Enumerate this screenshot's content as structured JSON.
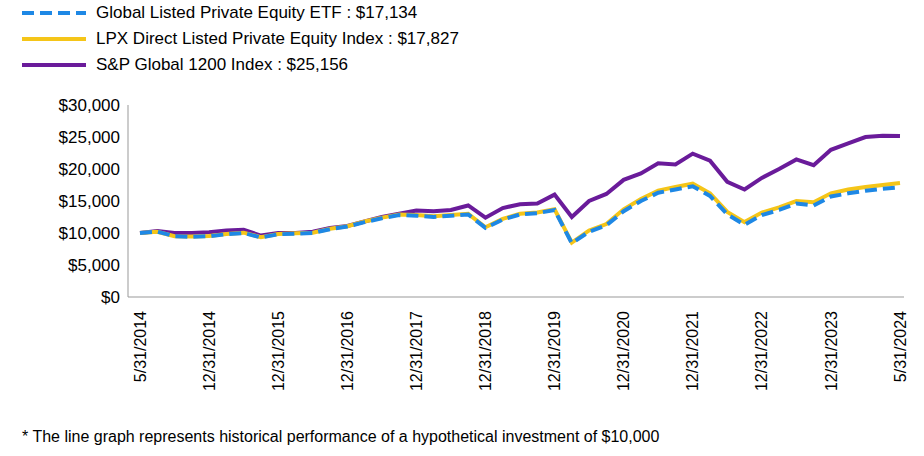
{
  "chart_data": {
    "type": "line",
    "categories": [
      "5/31/2014",
      null,
      null,
      null,
      "12/31/2014",
      null,
      null,
      null,
      "12/31/2015",
      null,
      null,
      null,
      "12/31/2016",
      null,
      null,
      null,
      "12/31/2017",
      null,
      null,
      null,
      "12/31/2018",
      null,
      null,
      null,
      "12/31/2019",
      null,
      null,
      null,
      "12/31/2020",
      null,
      null,
      null,
      "12/31/2021",
      null,
      null,
      null,
      "12/31/2022",
      null,
      null,
      null,
      "12/31/2023",
      null,
      null,
      null,
      "5/31/2024"
    ],
    "series": [
      {
        "name": "Global Listed Private Equity ETF : $17,134",
        "color": "#1e88e5",
        "line_style": "dashed",
        "values": [
          10000,
          10200,
          9500,
          9400,
          9500,
          9800,
          10000,
          9300,
          9800,
          9900,
          10000,
          10600,
          11000,
          11700,
          12300,
          12800,
          12700,
          12500,
          12700,
          12900,
          10800,
          12100,
          12900,
          13100,
          13600,
          8400,
          10200,
          11200,
          13400,
          15000,
          16300,
          16800,
          17300,
          15800,
          12900,
          11300,
          12800,
          13600,
          14600,
          14300,
          15700,
          16200,
          16600,
          16900,
          17134
        ]
      },
      {
        "name": "LPX Direct Listed Private Equity Index : $17,827",
        "color": "#f5c518",
        "line_style": "solid",
        "values": [
          10000,
          10200,
          9500,
          9450,
          9550,
          9850,
          10050,
          9350,
          9850,
          9950,
          10050,
          10650,
          11050,
          11800,
          12400,
          12900,
          12800,
          12600,
          12800,
          13000,
          10900,
          12200,
          13000,
          13200,
          13700,
          8500,
          10400,
          11400,
          13700,
          15300,
          16600,
          17200,
          17700,
          16200,
          13300,
          11700,
          13200,
          14000,
          15000,
          14800,
          16200,
          16800,
          17200,
          17500,
          17827
        ]
      },
      {
        "name": "S&P Global 1200 Index : $25,156",
        "color": "#6a1b9a",
        "line_style": "solid",
        "values": [
          10000,
          10300,
          10000,
          10000,
          10100,
          10400,
          10500,
          9600,
          10000,
          10000,
          10200,
          10800,
          11100,
          11800,
          12500,
          13000,
          13500,
          13400,
          13600,
          14300,
          12400,
          13900,
          14500,
          14600,
          16000,
          12500,
          15000,
          16100,
          18300,
          19300,
          20900,
          20700,
          22400,
          21300,
          18000,
          16800,
          18600,
          20000,
          21500,
          20600,
          23000,
          24000,
          25000,
          25200,
          25156
        ]
      }
    ],
    "ylim": [
      0,
      30000
    ],
    "yticks": [
      {
        "value": 0,
        "label": "$0"
      },
      {
        "value": 5000,
        "label": "$5,000"
      },
      {
        "value": 10000,
        "label": "$10,000"
      },
      {
        "value": 15000,
        "label": "$15,000"
      },
      {
        "value": 20000,
        "label": "$20,000"
      },
      {
        "value": 25000,
        "label": "$25,000"
      },
      {
        "value": 30000,
        "label": "$30,000"
      }
    ],
    "grid": false,
    "legend": "top-left",
    "annotations": [
      "* The line graph represents historical performance of a hypothetical investment of $10,000"
    ]
  }
}
